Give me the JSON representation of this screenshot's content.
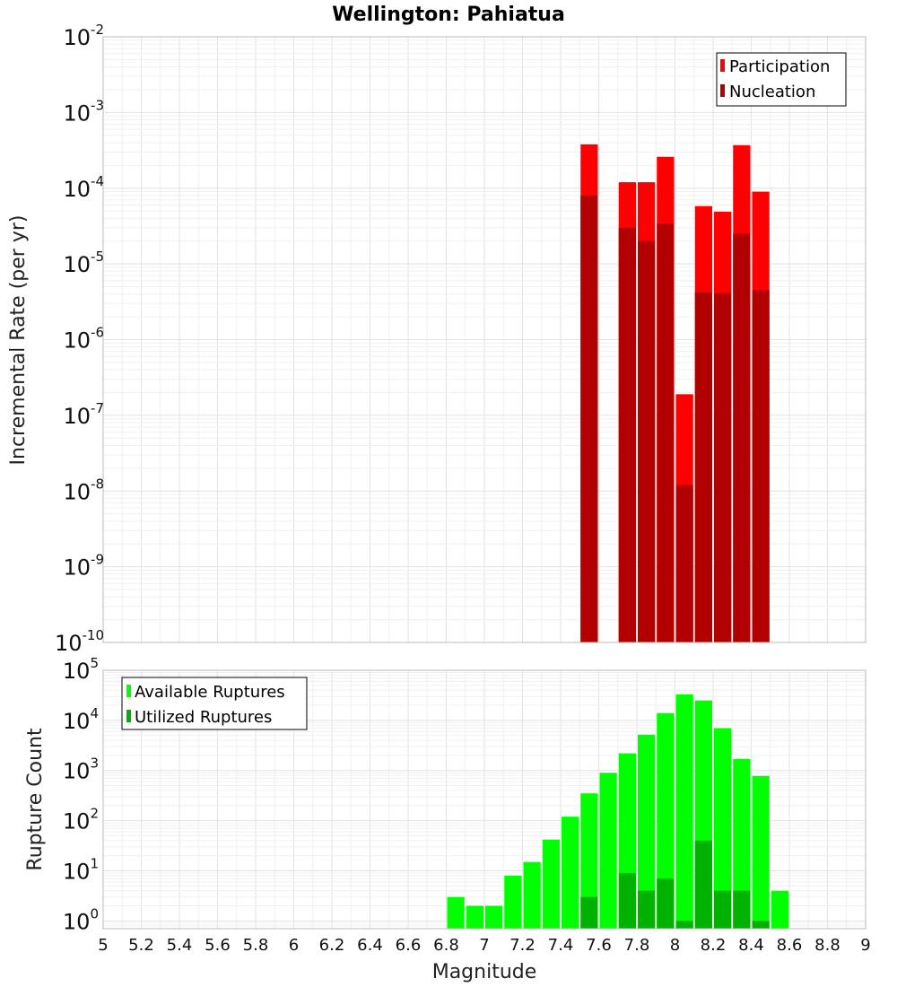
{
  "title": "Wellington: Pahiatua",
  "chart_data": [
    {
      "type": "bar",
      "scale": "log",
      "ylabel": "Incremental Rate (per yr)",
      "ylim": [
        1e-10,
        0.01
      ],
      "y_ticks": [
        {
          "base": "10",
          "exp": "-2"
        },
        {
          "base": "10",
          "exp": "-3"
        },
        {
          "base": "10",
          "exp": "-4"
        },
        {
          "base": "10",
          "exp": "-5"
        },
        {
          "base": "10",
          "exp": "-6"
        },
        {
          "base": "10",
          "exp": "-7"
        },
        {
          "base": "10",
          "exp": "-8"
        },
        {
          "base": "10",
          "exp": "-9"
        },
        {
          "base": "10",
          "exp": "-10"
        }
      ],
      "legend_position": "top-right",
      "grid": true,
      "bin_width": 0.1,
      "x": [
        7.55,
        7.65,
        7.75,
        7.85,
        7.95,
        8.05,
        8.15,
        8.25,
        8.35,
        8.45
      ],
      "series": [
        {
          "name": "Participation",
          "color": "#ff0000",
          "values": [
            0.00038,
            null,
            0.00012,
            0.00012,
            0.00026,
            1.9e-07,
            5.8e-05,
            4.9e-05,
            0.00037,
            9e-05
          ]
        },
        {
          "name": "Nucleation",
          "color": "#b20000",
          "values": [
            8e-05,
            null,
            3e-05,
            2e-05,
            3.4e-05,
            1.2e-08,
            4.2e-06,
            4.1e-06,
            2.5e-05,
            4.5e-06
          ]
        }
      ]
    },
    {
      "type": "bar",
      "scale": "log",
      "ylabel": "Rupture Count",
      "ylim": [
        0.7,
        100000
      ],
      "y_ticks": [
        {
          "base": "10",
          "exp": "5"
        },
        {
          "base": "10",
          "exp": "4"
        },
        {
          "base": "10",
          "exp": "3"
        },
        {
          "base": "10",
          "exp": "2"
        },
        {
          "base": "10",
          "exp": "1"
        },
        {
          "base": "10",
          "exp": "0"
        }
      ],
      "legend_position": "top-left",
      "grid": true,
      "bin_width": 0.1,
      "x": [
        6.85,
        6.95,
        7.05,
        7.15,
        7.25,
        7.35,
        7.45,
        7.55,
        7.65,
        7.75,
        7.85,
        7.95,
        8.05,
        8.15,
        8.25,
        8.35,
        8.45,
        8.55
      ],
      "series": [
        {
          "name": "Available Ruptures",
          "color": "#00ff00",
          "values": [
            3,
            2,
            2,
            8,
            15,
            42,
            120,
            350,
            900,
            2200,
            5200,
            14000,
            33000,
            25000,
            7000,
            1700,
            780,
            4
          ]
        },
        {
          "name": "Utilized Ruptures",
          "color": "#00b200",
          "values": [
            null,
            null,
            null,
            null,
            null,
            null,
            null,
            3,
            null,
            9,
            4,
            7,
            1,
            40,
            4,
            4,
            1,
            null
          ]
        }
      ]
    }
  ],
  "x_axis": {
    "label": "Magnitude",
    "ticks": [
      "5",
      "5.2",
      "5.4",
      "5.6",
      "5.8",
      "6",
      "6.2",
      "6.4",
      "6.6",
      "6.8",
      "7",
      "7.2",
      "7.4",
      "7.6",
      "7.8",
      "8",
      "8.2",
      "8.4",
      "8.6",
      "8.8",
      "9"
    ],
    "range": [
      5,
      9
    ]
  }
}
